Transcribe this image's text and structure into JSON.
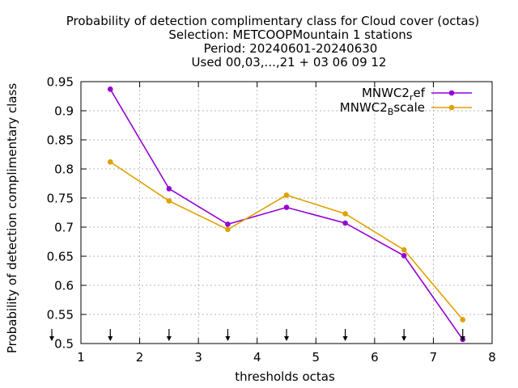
{
  "chart_data": {
    "type": "line",
    "title_lines": [
      "Probability of detection complimentary class  for Cloud cover (octas)",
      "Selection: METCOOPMountain      1 stations",
      "Period: 20240601-20240630",
      "Used 00,03,...,21 + 03 06 09 12"
    ],
    "xlabel": "thresholds octas",
    "ylabel": "Probability of detection complimentary class",
    "xlim": [
      1,
      8
    ],
    "ylim": [
      0.5,
      0.95
    ],
    "xticks": [
      1,
      2,
      3,
      4,
      5,
      6,
      7,
      8
    ],
    "xtick_labels": [
      "1",
      "2",
      "3",
      "4",
      "5",
      "6",
      "7",
      "8"
    ],
    "yticks": [
      0.5,
      0.55,
      0.6,
      0.65,
      0.7,
      0.75,
      0.8,
      0.85,
      0.9,
      0.95
    ],
    "ytick_labels": [
      "0.5",
      "0.55",
      "0.6",
      "0.65",
      "0.7",
      "0.75",
      "0.8",
      "0.85",
      "0.9",
      "0.95"
    ],
    "grid": true,
    "legend_position": "top-right",
    "x": [
      1.5,
      2.5,
      3.5,
      4.5,
      5.5,
      6.5,
      7.5
    ],
    "arrow_x": [
      1,
      1.5,
      2.5,
      3.5,
      4.5,
      5.5,
      6.5,
      7.5
    ],
    "series": [
      {
        "name": "MNWC2_ref",
        "legend_main": "MNWC2",
        "legend_sub": "r",
        "legend_tail": "ef",
        "color": "#9400d3",
        "values": [
          0.937,
          0.766,
          0.705,
          0.734,
          0.707,
          0.651,
          0.507
        ]
      },
      {
        "name": "MNWC2_Bscale",
        "legend_main": "MNWC2",
        "legend_sub": "B",
        "legend_tail": "scale",
        "color": "#e0a000",
        "values": [
          0.812,
          0.745,
          0.696,
          0.755,
          0.723,
          0.661,
          0.541
        ]
      }
    ]
  }
}
